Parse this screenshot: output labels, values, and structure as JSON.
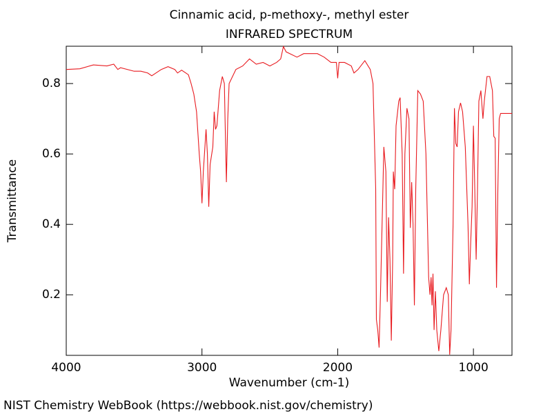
{
  "chart_data": {
    "type": "line",
    "title": "Cinnamic acid, p-methoxy-, methyl ester",
    "subtitle": "INFRARED SPECTRUM",
    "xlabel": "Wavenumber (cm-1)",
    "ylabel": "Transmittance",
    "source": "NIST Chemistry WebBook (https://webbook.nist.gov/chemistry)",
    "color": "#e8191e",
    "xlim": [
      4000,
      716
    ],
    "xticks": [
      4000,
      3000,
      2000,
      1000
    ],
    "ylim": [
      0.028,
      0.906
    ],
    "yticks": [
      0.2,
      0.4,
      0.6,
      0.8
    ],
    "x": [
      4000,
      3900,
      3800,
      3700,
      3650,
      3620,
      3600,
      3500,
      3450,
      3400,
      3370,
      3300,
      3250,
      3200,
      3180,
      3150,
      3100,
      3080,
      3060,
      3040,
      3020,
      3010,
      3000,
      2990,
      2970,
      2960,
      2950,
      2940,
      2920,
      2910,
      2900,
      2890,
      2870,
      2850,
      2835,
      2830,
      2820,
      2810,
      2800,
      2750,
      2700,
      2650,
      2600,
      2550,
      2500,
      2450,
      2420,
      2400,
      2380,
      2300,
      2250,
      2150,
      2100,
      2050,
      2010,
      2000,
      1990,
      1950,
      1900,
      1880,
      1850,
      1800,
      1760,
      1740,
      1720,
      1715,
      1705,
      1695,
      1685,
      1670,
      1660,
      1645,
      1635,
      1625,
      1615,
      1605,
      1595,
      1590,
      1580,
      1570,
      1550,
      1540,
      1525,
      1515,
      1505,
      1490,
      1475,
      1465,
      1455,
      1445,
      1435,
      1425,
      1410,
      1390,
      1370,
      1350,
      1330,
      1320,
      1312,
      1305,
      1298,
      1290,
      1280,
      1270,
      1255,
      1240,
      1220,
      1200,
      1185,
      1175,
      1165,
      1150,
      1140,
      1130,
      1120,
      1110,
      1095,
      1080,
      1060,
      1040,
      1030,
      1020,
      1010,
      1000,
      990,
      980,
      970,
      960,
      945,
      930,
      920,
      900,
      880,
      860,
      850,
      840,
      830,
      820,
      810,
      800,
      760,
      716
    ],
    "values": [
      0.84,
      0.842,
      0.853,
      0.85,
      0.855,
      0.84,
      0.845,
      0.835,
      0.835,
      0.83,
      0.822,
      0.84,
      0.848,
      0.84,
      0.83,
      0.838,
      0.825,
      0.8,
      0.77,
      0.72,
      0.6,
      0.55,
      0.46,
      0.55,
      0.67,
      0.6,
      0.45,
      0.57,
      0.62,
      0.72,
      0.67,
      0.68,
      0.78,
      0.82,
      0.8,
      0.7,
      0.52,
      0.7,
      0.8,
      0.84,
      0.85,
      0.87,
      0.855,
      0.86,
      0.85,
      0.86,
      0.87,
      0.905,
      0.89,
      0.875,
      0.885,
      0.885,
      0.875,
      0.86,
      0.86,
      0.815,
      0.86,
      0.86,
      0.85,
      0.83,
      0.84,
      0.865,
      0.84,
      0.8,
      0.5,
      0.13,
      0.1,
      0.05,
      0.2,
      0.45,
      0.62,
      0.55,
      0.18,
      0.42,
      0.3,
      0.07,
      0.3,
      0.55,
      0.5,
      0.68,
      0.75,
      0.76,
      0.6,
      0.26,
      0.6,
      0.73,
      0.7,
      0.39,
      0.52,
      0.4,
      0.17,
      0.5,
      0.78,
      0.77,
      0.75,
      0.6,
      0.25,
      0.2,
      0.25,
      0.17,
      0.26,
      0.1,
      0.21,
      0.1,
      0.04,
      0.1,
      0.2,
      0.22,
      0.2,
      0.03,
      0.1,
      0.4,
      0.73,
      0.63,
      0.62,
      0.72,
      0.745,
      0.72,
      0.62,
      0.4,
      0.23,
      0.35,
      0.45,
      0.68,
      0.5,
      0.3,
      0.5,
      0.75,
      0.78,
      0.7,
      0.75,
      0.82,
      0.82,
      0.78,
      0.65,
      0.645,
      0.22,
      0.5,
      0.7,
      0.715,
      0.715,
      0.715
    ]
  }
}
